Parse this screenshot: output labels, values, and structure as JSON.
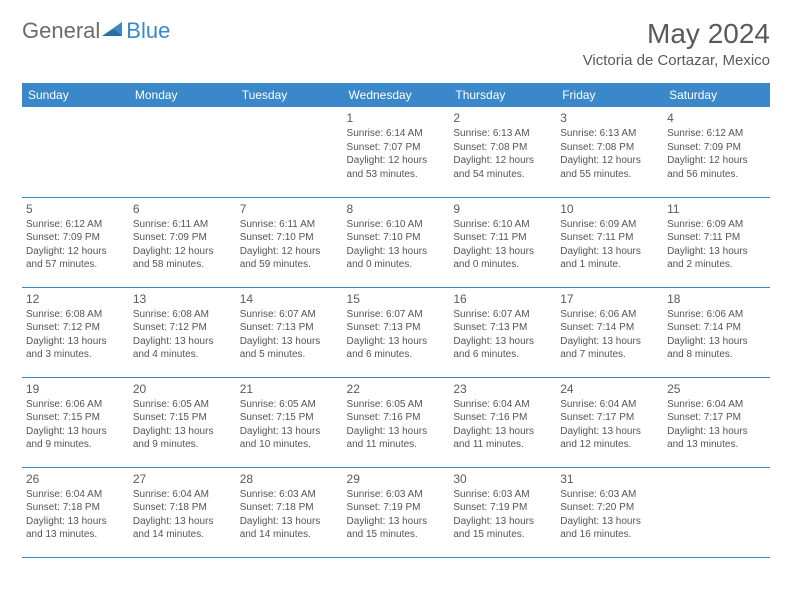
{
  "logo": {
    "part1": "General",
    "part2": "Blue"
  },
  "title": "May 2024",
  "location": "Victoria de Cortazar, Mexico",
  "colors": {
    "header_bg": "#3a88c9",
    "header_text": "#ffffff",
    "border": "#3a88c9",
    "title_text": "#5a5a5a",
    "body_text": "#555555",
    "logo_gray": "#6b6b6b",
    "logo_blue": "#3a88c9",
    "background": "#ffffff"
  },
  "days_of_week": [
    "Sunday",
    "Monday",
    "Tuesday",
    "Wednesday",
    "Thursday",
    "Friday",
    "Saturday"
  ],
  "weeks": [
    [
      null,
      null,
      null,
      {
        "n": "1",
        "sunrise": "6:14 AM",
        "sunset": "7:07 PM",
        "dl": "12 hours and 53 minutes."
      },
      {
        "n": "2",
        "sunrise": "6:13 AM",
        "sunset": "7:08 PM",
        "dl": "12 hours and 54 minutes."
      },
      {
        "n": "3",
        "sunrise": "6:13 AM",
        "sunset": "7:08 PM",
        "dl": "12 hours and 55 minutes."
      },
      {
        "n": "4",
        "sunrise": "6:12 AM",
        "sunset": "7:09 PM",
        "dl": "12 hours and 56 minutes."
      }
    ],
    [
      {
        "n": "5",
        "sunrise": "6:12 AM",
        "sunset": "7:09 PM",
        "dl": "12 hours and 57 minutes."
      },
      {
        "n": "6",
        "sunrise": "6:11 AM",
        "sunset": "7:09 PM",
        "dl": "12 hours and 58 minutes."
      },
      {
        "n": "7",
        "sunrise": "6:11 AM",
        "sunset": "7:10 PM",
        "dl": "12 hours and 59 minutes."
      },
      {
        "n": "8",
        "sunrise": "6:10 AM",
        "sunset": "7:10 PM",
        "dl": "13 hours and 0 minutes."
      },
      {
        "n": "9",
        "sunrise": "6:10 AM",
        "sunset": "7:11 PM",
        "dl": "13 hours and 0 minutes."
      },
      {
        "n": "10",
        "sunrise": "6:09 AM",
        "sunset": "7:11 PM",
        "dl": "13 hours and 1 minute."
      },
      {
        "n": "11",
        "sunrise": "6:09 AM",
        "sunset": "7:11 PM",
        "dl": "13 hours and 2 minutes."
      }
    ],
    [
      {
        "n": "12",
        "sunrise": "6:08 AM",
        "sunset": "7:12 PM",
        "dl": "13 hours and 3 minutes."
      },
      {
        "n": "13",
        "sunrise": "6:08 AM",
        "sunset": "7:12 PM",
        "dl": "13 hours and 4 minutes."
      },
      {
        "n": "14",
        "sunrise": "6:07 AM",
        "sunset": "7:13 PM",
        "dl": "13 hours and 5 minutes."
      },
      {
        "n": "15",
        "sunrise": "6:07 AM",
        "sunset": "7:13 PM",
        "dl": "13 hours and 6 minutes."
      },
      {
        "n": "16",
        "sunrise": "6:07 AM",
        "sunset": "7:13 PM",
        "dl": "13 hours and 6 minutes."
      },
      {
        "n": "17",
        "sunrise": "6:06 AM",
        "sunset": "7:14 PM",
        "dl": "13 hours and 7 minutes."
      },
      {
        "n": "18",
        "sunrise": "6:06 AM",
        "sunset": "7:14 PM",
        "dl": "13 hours and 8 minutes."
      }
    ],
    [
      {
        "n": "19",
        "sunrise": "6:06 AM",
        "sunset": "7:15 PM",
        "dl": "13 hours and 9 minutes."
      },
      {
        "n": "20",
        "sunrise": "6:05 AM",
        "sunset": "7:15 PM",
        "dl": "13 hours and 9 minutes."
      },
      {
        "n": "21",
        "sunrise": "6:05 AM",
        "sunset": "7:15 PM",
        "dl": "13 hours and 10 minutes."
      },
      {
        "n": "22",
        "sunrise": "6:05 AM",
        "sunset": "7:16 PM",
        "dl": "13 hours and 11 minutes."
      },
      {
        "n": "23",
        "sunrise": "6:04 AM",
        "sunset": "7:16 PM",
        "dl": "13 hours and 11 minutes."
      },
      {
        "n": "24",
        "sunrise": "6:04 AM",
        "sunset": "7:17 PM",
        "dl": "13 hours and 12 minutes."
      },
      {
        "n": "25",
        "sunrise": "6:04 AM",
        "sunset": "7:17 PM",
        "dl": "13 hours and 13 minutes."
      }
    ],
    [
      {
        "n": "26",
        "sunrise": "6:04 AM",
        "sunset": "7:18 PM",
        "dl": "13 hours and 13 minutes."
      },
      {
        "n": "27",
        "sunrise": "6:04 AM",
        "sunset": "7:18 PM",
        "dl": "13 hours and 14 minutes."
      },
      {
        "n": "28",
        "sunrise": "6:03 AM",
        "sunset": "7:18 PM",
        "dl": "13 hours and 14 minutes."
      },
      {
        "n": "29",
        "sunrise": "6:03 AM",
        "sunset": "7:19 PM",
        "dl": "13 hours and 15 minutes."
      },
      {
        "n": "30",
        "sunrise": "6:03 AM",
        "sunset": "7:19 PM",
        "dl": "13 hours and 15 minutes."
      },
      {
        "n": "31",
        "sunrise": "6:03 AM",
        "sunset": "7:20 PM",
        "dl": "13 hours and 16 minutes."
      },
      null
    ]
  ],
  "labels": {
    "sunrise": "Sunrise:",
    "sunset": "Sunset:",
    "daylight": "Daylight:"
  }
}
